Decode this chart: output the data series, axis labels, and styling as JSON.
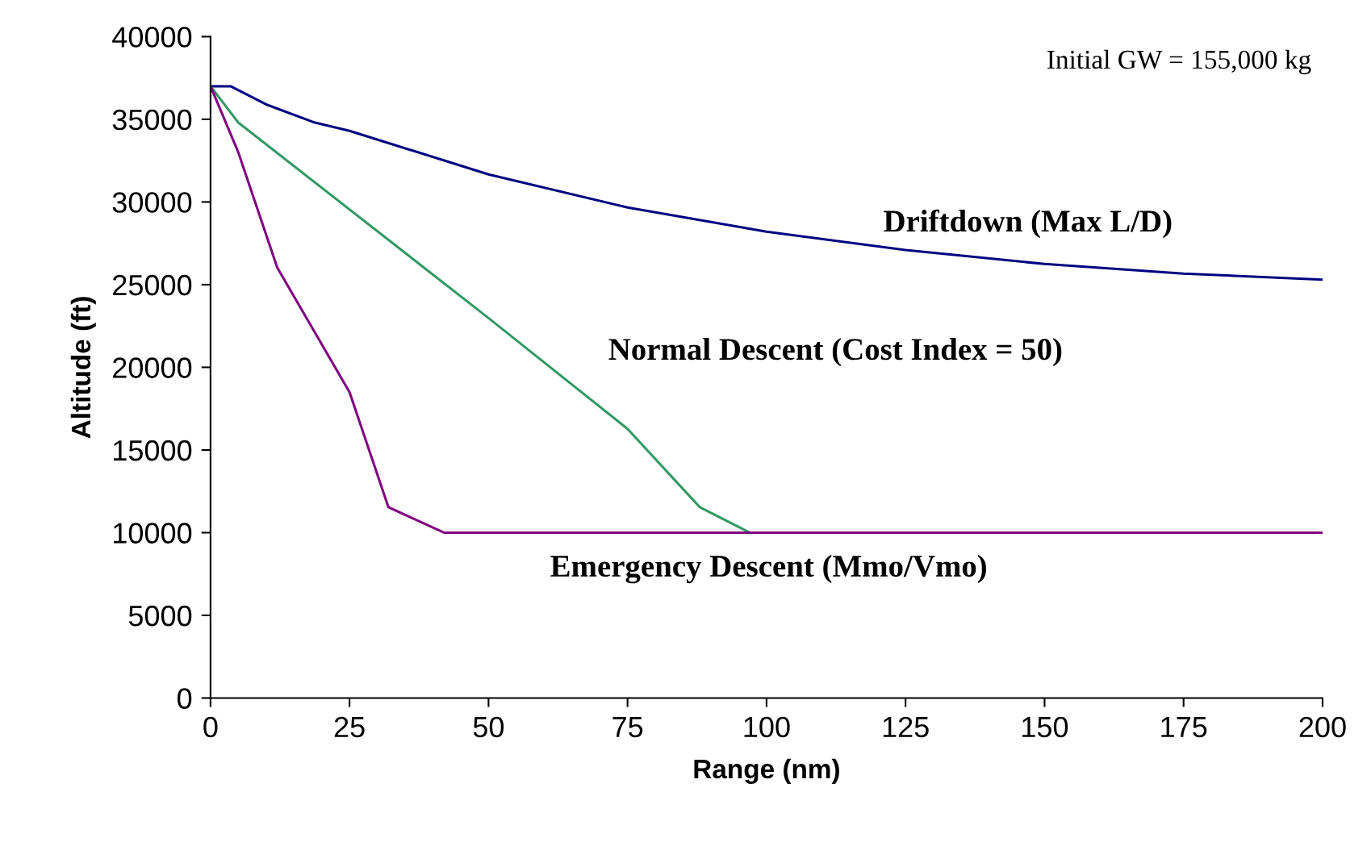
{
  "chart_data": {
    "type": "line",
    "xlabel": "Range (nm)",
    "ylabel": "Altitude (ft)",
    "xlim": [
      0,
      200
    ],
    "xticks": [
      0,
      25,
      50,
      75,
      100,
      125,
      150,
      175,
      200
    ],
    "ylim": [
      0,
      40000
    ],
    "yticks": [
      0,
      5000,
      10000,
      15000,
      20000,
      25000,
      30000,
      35000,
      40000
    ],
    "grid": false,
    "legend": false,
    "marker": "none",
    "line_style": "solid",
    "series": [
      {
        "name": "Driftdown (Max L/D)",
        "color": "#000080",
        "x": [
          0,
          3.6,
          10,
          18.5,
          25,
          50,
          75,
          100,
          125,
          150,
          175,
          200
        ],
        "values": [
          37000,
          37000,
          35900,
          34830,
          34300,
          31670,
          29670,
          28200,
          27090,
          26250,
          25670,
          25300
        ]
      },
      {
        "name": "Normal Descent (Cost Index = 50)",
        "color": "#339966",
        "x": [
          0,
          5,
          50,
          75,
          88,
          97
        ],
        "values": [
          37000,
          34800,
          22980,
          16280,
          11540,
          10000
        ]
      },
      {
        "name": "Emergency Descent (Mmo/Vmo)",
        "color": "#800080",
        "x": [
          0,
          5,
          12,
          25,
          32,
          42,
          200
        ],
        "values": [
          37000,
          33000,
          26030,
          18500,
          11540,
          10000,
          10000
        ]
      }
    ],
    "annotations": [
      "Initial GW = 155,000 kg"
    ]
  }
}
